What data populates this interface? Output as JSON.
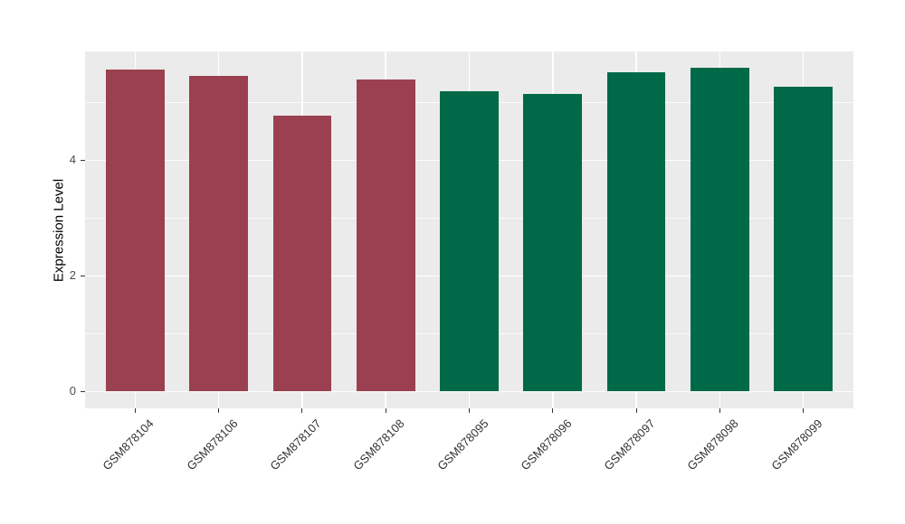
{
  "figure": {
    "background": "#FFFFFF",
    "panel_background": "#EBEBEB",
    "grid_major_color": "#FFFFFF",
    "grid_minor_color": "#FFFFFF",
    "tick_mark_color": "#333333",
    "axis_text_color": "#4D4D4D",
    "axis_title_color": "#000000"
  },
  "chart_data": {
    "type": "bar",
    "title": "",
    "xlabel": "",
    "ylabel": "Expression Level",
    "categories": [
      "GSM878104",
      "GSM878106",
      "GSM878107",
      "GSM878108",
      "GSM878095",
      "GSM878096",
      "GSM878097",
      "GSM878098",
      "GSM878099"
    ],
    "values": [
      5.56,
      5.46,
      4.77,
      5.4,
      5.19,
      5.15,
      5.52,
      5.6,
      5.27
    ],
    "bar_colors": [
      "#9B4050",
      "#9B4050",
      "#9B4050",
      "#9B4050",
      "#006948",
      "#006948",
      "#006948",
      "#006948",
      "#006948"
    ],
    "color_groups": [
      {
        "color": "#9B4050",
        "count": 4
      },
      {
        "color": "#006948",
        "count": 5
      }
    ],
    "yticks": [
      0,
      2,
      4
    ],
    "ytick_labels": [
      "0",
      "2",
      "4"
    ],
    "yticks_minor": [
      1,
      3,
      5
    ],
    "ylim": [
      -0.29,
      5.88
    ],
    "bar_width_fraction": 0.7,
    "x_label_rotation_deg": 45,
    "grid": true,
    "legend": "none"
  }
}
